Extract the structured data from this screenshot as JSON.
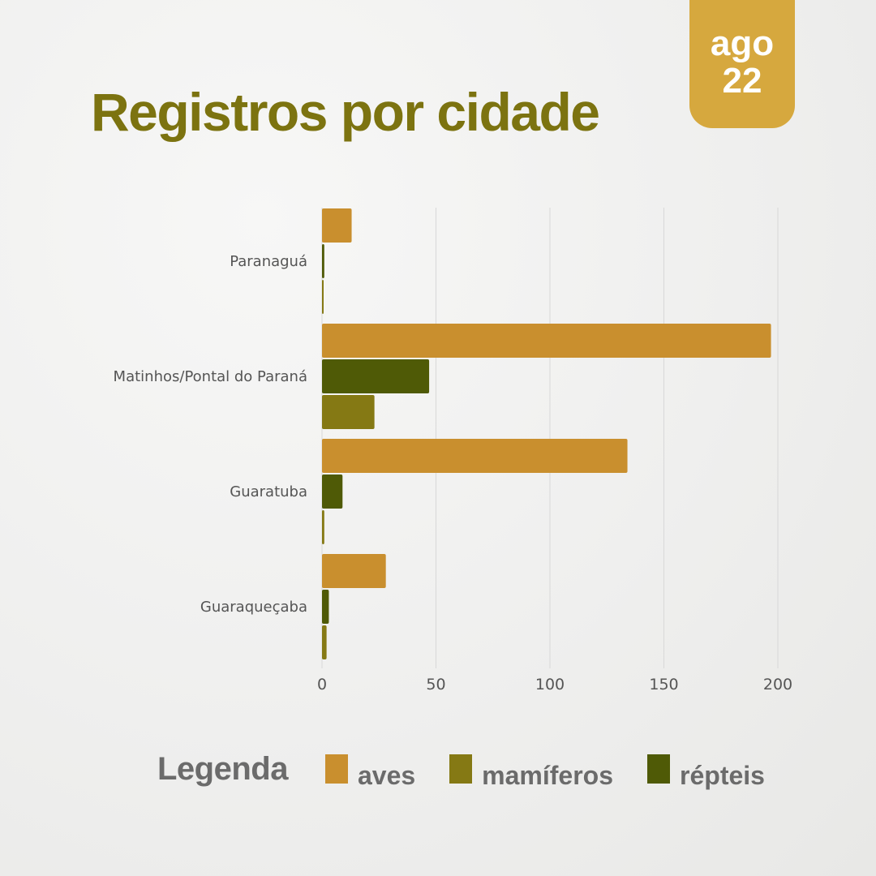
{
  "header": {
    "title": "Registros por cidade",
    "date_month": "ago",
    "date_year": "22"
  },
  "colors": {
    "aves": "#c98f2e",
    "mamiferos": "#857914",
    "repteis": "#4f5a06",
    "gridline": "#d8d8d8",
    "date_tag": "#d6a83e"
  },
  "legend": {
    "title": "Legenda",
    "items": [
      {
        "label": "aves",
        "color": "#c98f2e"
      },
      {
        "label": "mamíferos",
        "color": "#857914"
      },
      {
        "label": "répteis",
        "color": "#4f5a06"
      }
    ]
  },
  "chart_data": {
    "type": "bar",
    "orientation": "horizontal",
    "categories": [
      "Paranaguá",
      "Matinhos/Pontal do Paraná",
      "Guaratuba",
      "Guaraqueçaba"
    ],
    "series": [
      {
        "name": "aves",
        "color": "#c98f2e",
        "values": [
          13,
          197,
          134,
          28
        ]
      },
      {
        "name": "répteis",
        "color": "#4f5a06",
        "values": [
          1,
          47,
          9,
          3
        ]
      },
      {
        "name": "mamíferos",
        "color": "#857914",
        "values": [
          0,
          23,
          1,
          2
        ]
      }
    ],
    "xlim": [
      0,
      200
    ],
    "x_ticks": [
      0,
      50,
      100,
      150,
      200
    ],
    "grid": true,
    "legend_position": "bottom"
  }
}
